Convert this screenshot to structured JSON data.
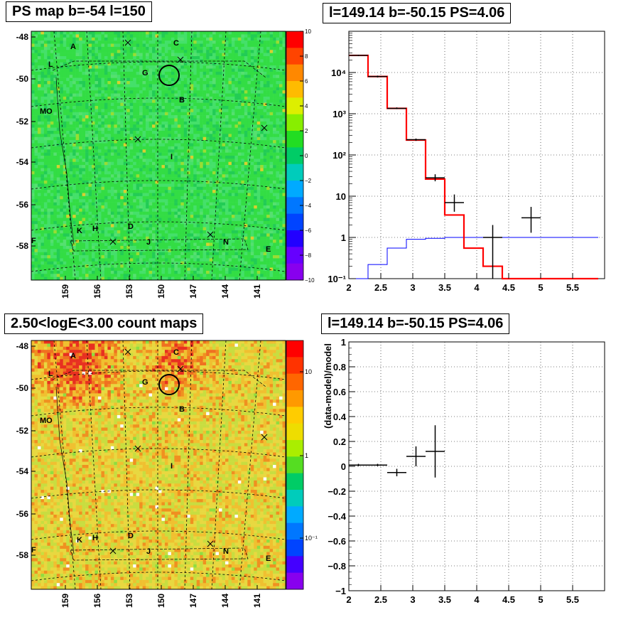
{
  "panels": {
    "ps_map_title": "PS map b=-54 l=150",
    "count_map_title": "2.50<logE<3.00 count maps",
    "spectrum_title": "l=149.14 b=-50.15 PS=4.06",
    "residual_title": "l=149.14 b=-50.15 PS=4.06"
  },
  "colors": {
    "model_red": "#ff0000",
    "background_blue": "#0000ff",
    "data_black": "#000000",
    "psmap_bg": "#33dd44",
    "countmap_bg": "#e8d840"
  },
  "chart_data": [
    {
      "type": "heatmap",
      "name": "ps-map",
      "title": "PS map b=-54 l=150",
      "x_ticks": [
        "159",
        "156",
        "153",
        "150",
        "147",
        "144",
        "141"
      ],
      "y_ticks": [
        "-48",
        "-50",
        "-52",
        "-54",
        "-56",
        "-58"
      ],
      "colorbar_ticks": [
        "10",
        "8",
        "6",
        "4",
        "2",
        "0",
        "−2",
        "−4",
        "−6",
        "−8",
        "−10"
      ],
      "colorbar_range": [
        -10,
        10
      ],
      "source_labels": [
        "A",
        "C",
        "L",
        "G",
        "B",
        "MO",
        "I",
        "K",
        "H",
        "D",
        "J",
        "N",
        "E",
        "F"
      ]
    },
    {
      "type": "heatmap",
      "name": "count-map",
      "title": "2.50<logE<3.00 count maps",
      "x_ticks": [
        "159",
        "156",
        "153",
        "150",
        "147",
        "144",
        "141"
      ],
      "y_ticks": [
        "-48",
        "-50",
        "-52",
        "-54",
        "-56",
        "-58"
      ],
      "colorbar_ticks": [
        "10",
        "1",
        "10⁻¹"
      ],
      "colorbar_scale": "log",
      "source_labels": [
        "A",
        "C",
        "L",
        "G",
        "B",
        "MO",
        "I",
        "K",
        "H",
        "D",
        "J",
        "N",
        "E",
        "F"
      ]
    },
    {
      "type": "line",
      "name": "spectrum",
      "title": "l=149.14 b=-50.15 PS=4.06",
      "xlim": [
        2,
        6
      ],
      "ylim": [
        0.1,
        100000
      ],
      "yscale": "log",
      "grid": true,
      "x_ticks": [
        "2",
        "2.5",
        "3",
        "3.5",
        "4",
        "4.5",
        "5",
        "5.5"
      ],
      "y_ticks": [
        "10⁻¹",
        "1",
        "10",
        "10²",
        "10³",
        "10⁴"
      ],
      "series": [
        {
          "type": "step",
          "bin_edges": [
            2,
            2.3,
            2.6,
            2.9,
            3.2,
            3.5,
            3.8,
            4.1,
            4.4,
            4.7,
            5.0,
            5.3,
            5.6,
            5.9
          ],
          "values": [
            26000,
            8000,
            1350,
            230,
            26,
            3.5,
            0.55,
            0.2,
            0.1,
            0.1,
            0.1,
            0.1,
            0.1
          ]
        },
        {
          "type": "step",
          "bin_edges": [
            2,
            2.3,
            2.6,
            2.9,
            3.2,
            3.5,
            3.8,
            4.1,
            4.4,
            4.7,
            5.0,
            5.3,
            5.6,
            5.9
          ],
          "values": [
            0.1,
            0.22,
            0.55,
            0.9,
            0.95,
            1.0,
            1.0,
            1.0,
            1.0,
            1.0,
            1.0,
            1.0,
            1.0
          ]
        },
        {
          "type": "errorbar",
          "points": [
            {
              "x": 2.15,
              "y": 26000,
              "xerr": 0.15,
              "ylo": 25000,
              "yhi": 27000
            },
            {
              "x": 2.45,
              "y": 8000,
              "xerr": 0.15,
              "ylo": 7600,
              "yhi": 8400
            },
            {
              "x": 2.75,
              "y": 1350,
              "xerr": 0.15,
              "ylo": 1300,
              "yhi": 1420
            },
            {
              "x": 3.05,
              "y": 235,
              "xerr": 0.15,
              "ylo": 220,
              "yhi": 250
            },
            {
              "x": 3.35,
              "y": 28,
              "xerr": 0.15,
              "ylo": 23,
              "yhi": 34
            },
            {
              "x": 3.65,
              "y": 7,
              "xerr": 0.15,
              "ylo": 4.2,
              "yhi": 11
            },
            {
              "x": 4.25,
              "y": 1.0,
              "xerr": 0.15,
              "ylo": 0.1,
              "yhi": 2.0
            },
            {
              "x": 4.85,
              "y": 3,
              "xerr": 0.15,
              "ylo": 1.3,
              "yhi": 5.5
            }
          ]
        }
      ]
    },
    {
      "type": "scatter",
      "name": "residual",
      "title": "l=149.14 b=-50.15 PS=4.06",
      "ylabel": "(data-model)/model",
      "xlim": [
        2,
        6
      ],
      "ylim": [
        -1,
        1
      ],
      "grid": true,
      "x_ticks": [
        "2",
        "2.5",
        "3",
        "3.5",
        "4",
        "4.5",
        "5",
        "5.5"
      ],
      "y_ticks": [
        "−1",
        "−0.8",
        "−0.6",
        "−0.4",
        "−0.2",
        "0",
        "0.2",
        "0.4",
        "0.6",
        "0.8",
        "1"
      ],
      "points": [
        {
          "x": 2.15,
          "y": 0.01,
          "xerr": 0.15,
          "yerr": 0.01
        },
        {
          "x": 2.45,
          "y": 0.01,
          "xerr": 0.15,
          "yerr": 0.01
        },
        {
          "x": 2.75,
          "y": -0.05,
          "xerr": 0.15,
          "yerr": 0.03
        },
        {
          "x": 3.05,
          "y": 0.08,
          "xerr": 0.15,
          "yerr": 0.08
        },
        {
          "x": 3.35,
          "y": 0.12,
          "xerr": 0.15,
          "yerr": 0.21
        }
      ]
    }
  ]
}
